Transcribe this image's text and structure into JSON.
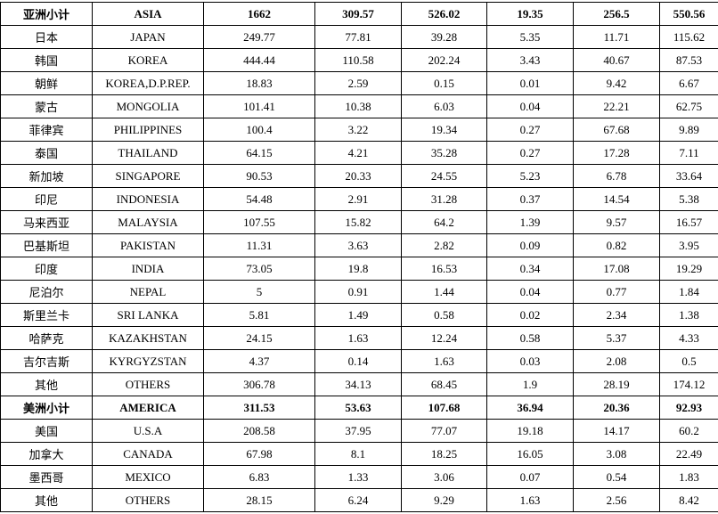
{
  "table": {
    "sections": [
      {
        "subtotal": [
          "亚洲小计",
          "ASIA",
          "1662",
          "309.57",
          "526.02",
          "19.35",
          "256.5",
          "550.56"
        ],
        "rows": [
          [
            "日本",
            "JAPAN",
            "249.77",
            "77.81",
            "39.28",
            "5.35",
            "11.71",
            "115.62"
          ],
          [
            "韩国",
            "KOREA",
            "444.44",
            "110.58",
            "202.24",
            "3.43",
            "40.67",
            "87.53"
          ],
          [
            "朝鲜",
            "KOREA,D.P.REP.",
            "18.83",
            "2.59",
            "0.15",
            "0.01",
            "9.42",
            "6.67"
          ],
          [
            "蒙古",
            "MONGOLIA",
            "101.41",
            "10.38",
            "6.03",
            "0.04",
            "22.21",
            "62.75"
          ],
          [
            "菲律宾",
            "PHILIPPINES",
            "100.4",
            "3.22",
            "19.34",
            "0.27",
            "67.68",
            "9.89"
          ],
          [
            "泰国",
            "THAILAND",
            "64.15",
            "4.21",
            "35.28",
            "0.27",
            "17.28",
            "7.11"
          ],
          [
            "新加坡",
            "SINGAPORE",
            "90.53",
            "20.33",
            "24.55",
            "5.23",
            "6.78",
            "33.64"
          ],
          [
            "印尼",
            "INDONESIA",
            "54.48",
            "2.91",
            "31.28",
            "0.37",
            "14.54",
            "5.38"
          ],
          [
            "马来西亚",
            "MALAYSIA",
            "107.55",
            "15.82",
            "64.2",
            "1.39",
            "9.57",
            "16.57"
          ],
          [
            "巴基斯坦",
            "PAKISTAN",
            "11.31",
            "3.63",
            "2.82",
            "0.09",
            "0.82",
            "3.95"
          ],
          [
            "印度",
            "INDIA",
            "73.05",
            "19.8",
            "16.53",
            "0.34",
            "17.08",
            "19.29"
          ],
          [
            "尼泊尔",
            "NEPAL",
            "5",
            "0.91",
            "1.44",
            "0.04",
            "0.77",
            "1.84"
          ],
          [
            "斯里兰卡",
            "SRI  LANKA",
            "5.81",
            "1.49",
            "0.58",
            "0.02",
            "2.34",
            "1.38"
          ],
          [
            "哈萨克",
            "KAZAKHSTAN",
            "24.15",
            "1.63",
            "12.24",
            "0.58",
            "5.37",
            "4.33"
          ],
          [
            "吉尔吉斯",
            "KYRGYZSTAN",
            "4.37",
            "0.14",
            "1.63",
            "0.03",
            "2.08",
            "0.5"
          ],
          [
            "其他",
            "OTHERS",
            "306.78",
            "34.13",
            "68.45",
            "1.9",
            "28.19",
            "174.12"
          ]
        ]
      },
      {
        "subtotal": [
          "美洲小计",
          "AMERICA",
          "311.53",
          "53.63",
          "107.68",
          "36.94",
          "20.36",
          "92.93"
        ],
        "rows": [
          [
            "美国",
            "U.S.A",
            "208.58",
            "37.95",
            "77.07",
            "19.18",
            "14.17",
            "60.2"
          ],
          [
            "加拿大",
            "CANADA",
            "67.98",
            "8.1",
            "18.25",
            "16.05",
            "3.08",
            "22.49"
          ],
          [
            "墨西哥",
            "MEXICO",
            "6.83",
            "1.33",
            "3.06",
            "0.07",
            "0.54",
            "1.83"
          ],
          [
            "其他",
            "OTHERS",
            "28.15",
            "6.24",
            "9.29",
            "1.63",
            "2.56",
            "8.42"
          ]
        ]
      }
    ]
  }
}
